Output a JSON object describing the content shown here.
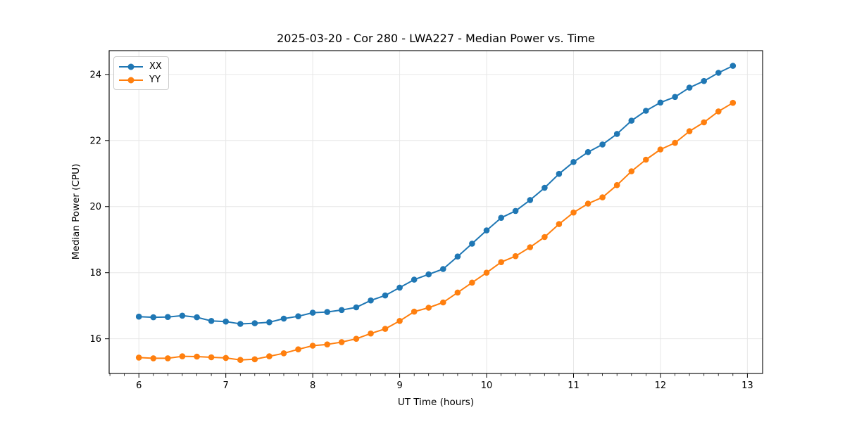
{
  "figure": {
    "title": "2025-03-20 - Cor 280 - LWA227 - Median Power vs. Time",
    "xlabel": "UT Time (hours)",
    "ylabel": "Median Power (CPU)"
  },
  "legend": {
    "position": "upper left",
    "items": [
      {
        "label": "XX",
        "color": "#1f77b4",
        "marker": "circle-icon"
      },
      {
        "label": "YY",
        "color": "#ff7f0e",
        "marker": "circle-icon"
      }
    ]
  },
  "colors": {
    "series_xx": "#1f77b4",
    "series_yy": "#ff7f0e",
    "grid": "#e7e7e7",
    "spine": "#000000",
    "text": "#000000",
    "background": "#ffffff"
  },
  "chart_data": {
    "type": "line",
    "title": "2025-03-20 - Cor 280 - LWA227 - Median Power vs. Time",
    "xlabel": "UT Time (hours)",
    "ylabel": "Median Power (CPU)",
    "grid": true,
    "legend_position": "upper left",
    "xlim": [
      5.658,
      13.175
    ],
    "ylim": [
      14.95,
      24.72
    ],
    "xticks": [
      6,
      7,
      8,
      9,
      10,
      11,
      12,
      13
    ],
    "yticks": [
      16,
      18,
      20,
      22,
      24
    ],
    "x_minor_tick_step_hours": 0.1667,
    "x": [
      6.0,
      6.167,
      6.333,
      6.5,
      6.667,
      6.833,
      7.0,
      7.167,
      7.333,
      7.5,
      7.667,
      7.833,
      8.0,
      8.167,
      8.333,
      8.5,
      8.667,
      8.833,
      9.0,
      9.167,
      9.333,
      9.5,
      9.667,
      9.833,
      10.0,
      10.167,
      10.333,
      10.5,
      10.667,
      10.833,
      11.0,
      11.167,
      11.333,
      11.5,
      11.667,
      11.833,
      12.0,
      12.167,
      12.333,
      12.5,
      12.667,
      12.833
    ],
    "series": [
      {
        "name": "XX",
        "color": "#1f77b4",
        "marker": "o",
        "values": [
          16.67,
          16.65,
          16.66,
          16.7,
          16.65,
          16.54,
          16.52,
          16.45,
          16.47,
          16.5,
          16.61,
          16.68,
          16.79,
          16.81,
          16.87,
          16.95,
          17.16,
          17.31,
          17.55,
          17.79,
          17.95,
          18.11,
          18.49,
          18.88,
          19.28,
          19.66,
          19.87,
          20.2,
          20.57,
          20.99,
          21.35,
          21.65,
          21.88,
          22.2,
          22.6,
          22.9,
          23.15,
          23.32,
          23.6,
          23.8,
          24.05,
          24.26
        ]
      },
      {
        "name": "YY",
        "color": "#ff7f0e",
        "marker": "o",
        "values": [
          15.43,
          15.41,
          15.41,
          15.47,
          15.46,
          15.44,
          15.42,
          15.36,
          15.38,
          15.47,
          15.56,
          15.68,
          15.79,
          15.83,
          15.9,
          16.0,
          16.16,
          16.3,
          16.54,
          16.82,
          16.94,
          17.1,
          17.4,
          17.7,
          18.0,
          18.32,
          18.5,
          18.77,
          19.08,
          19.47,
          19.82,
          20.09,
          20.28,
          20.65,
          21.07,
          21.42,
          21.73,
          21.93,
          22.28,
          22.55,
          22.88,
          23.14
        ]
      }
    ]
  }
}
